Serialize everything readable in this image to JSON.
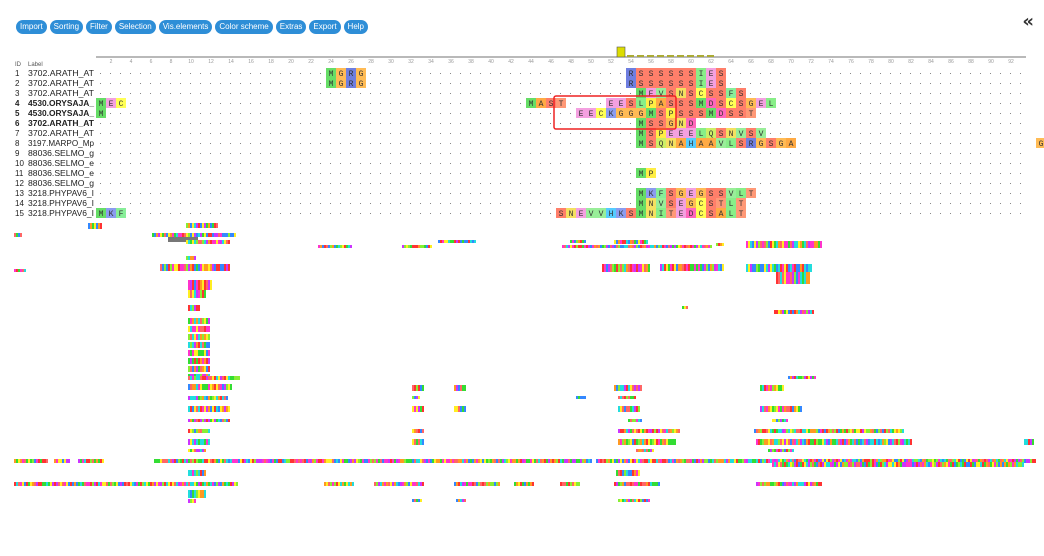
{
  "menu": {
    "items": [
      "Import",
      "Sorting",
      "Filter",
      "Selection",
      "Vis.elements",
      "Color scheme",
      "Extras",
      "Export",
      "Help"
    ]
  },
  "collapse_icon": "double-chevron-left-icon",
  "header": {
    "id_label": "ID",
    "name_label": "Label"
  },
  "ruler": {
    "ticks": [
      2,
      4,
      6,
      8,
      10,
      12,
      14,
      16,
      18,
      20,
      22,
      24,
      26,
      28,
      30,
      32,
      34,
      36,
      38,
      40,
      42,
      44,
      46,
      48,
      50,
      52,
      54,
      56,
      58,
      60,
      62,
      64,
      66,
      68,
      70,
      72,
      74,
      76,
      78,
      80,
      82,
      84,
      86,
      88,
      90,
      92
    ]
  },
  "sequences": [
    {
      "id": "1",
      "label": "3702.ARATH_AT",
      "bold": false,
      "segments": [
        {
          "start": 23,
          "text": "MGRG"
        },
        {
          "start": 53,
          "text": "RSSSSSSIES"
        }
      ]
    },
    {
      "id": "2",
      "label": "3702.ARATH_AT",
      "bold": false,
      "segments": [
        {
          "start": 23,
          "text": "MGRG"
        },
        {
          "start": 53,
          "text": "RSSSSSSIES"
        }
      ]
    },
    {
      "id": "3",
      "label": "3702.ARATH_AT",
      "bold": false,
      "segments": [
        {
          "start": 54,
          "text": "MEVSNSCSSFS"
        }
      ]
    },
    {
      "id": "4",
      "label": "4530.ORYSAJA_",
      "bold": true,
      "segments": [
        {
          "start": 0,
          "text": "MEC"
        },
        {
          "start": 43,
          "text": "MAST"
        },
        {
          "start": 51,
          "text": "EESLPASSSMDSCSGEL"
        }
      ]
    },
    {
      "id": "5",
      "label": "4530.ORYSAJA_",
      "bold": true,
      "segments": [
        {
          "start": 0,
          "text": "M"
        },
        {
          "start": 48,
          "text": "EECKGGGMSPSSSMDSST"
        }
      ]
    },
    {
      "id": "6",
      "label": "3702.ARATH_AT",
      "bold": true,
      "segments": [
        {
          "start": 54,
          "text": "MSSGND"
        }
      ]
    },
    {
      "id": "7",
      "label": "3702.ARATH_AT",
      "bold": false,
      "segments": [
        {
          "start": 54,
          "text": "MSPEEELQSNVSV"
        }
      ]
    },
    {
      "id": "8",
      "label": "3197.MARPO_Mp",
      "bold": false,
      "segments": [
        {
          "start": 54,
          "text": "MSQNAHAAVLSRGSGA"
        },
        {
          "start": 94,
          "text": "GG"
        }
      ]
    },
    {
      "id": "9",
      "label": "88036.SELMO_g",
      "bold": false,
      "segments": []
    },
    {
      "id": "10",
      "label": "88036.SELMO_e",
      "bold": false,
      "segments": []
    },
    {
      "id": "11",
      "label": "88036.SELMO_e",
      "bold": false,
      "segments": [
        {
          "start": 54,
          "text": "MP"
        }
      ]
    },
    {
      "id": "12",
      "label": "88036.SELMO_g",
      "bold": false,
      "segments": []
    },
    {
      "id": "13",
      "label": "3218.PHYPAV6_I",
      "bold": false,
      "segments": [
        {
          "start": 54,
          "text": "MKFSGEGSSVLT"
        }
      ]
    },
    {
      "id": "14",
      "label": "3218.PHYPAV6_I",
      "bold": false,
      "segments": [
        {
          "start": 54,
          "text": "MNVSEGCSTLT"
        }
      ]
    },
    {
      "id": "15",
      "label": "3218.PHYPAV6_I",
      "bold": false,
      "segments": [
        {
          "start": 0,
          "text": "MKF"
        },
        {
          "start": 46,
          "text": "SNEVVHKSMNITEDCSALT"
        }
      ]
    }
  ],
  "colors": {
    "M": "#66dd66",
    "A": "#ffaa44",
    "S": "#ff7f6a",
    "E": "#f4a0e0",
    "C": "#ffff55",
    "G": "#ffbb55",
    "R": "#6e7ee0",
    "K": "#8b9cf0",
    "N": "#f4e060",
    "Q": "#ccee66",
    "D": "#ff66bb",
    "L": "#88ee88",
    "I": "#88ee88",
    "V": "#99ee99",
    "F": "#88ee99",
    "T": "#ff9977",
    "P": "#ffee44",
    "H": "#55ccff",
    "W": "#55cc99",
    "Y": "#55ddbb",
    "selection": "#ee2222",
    "menu": "#2e8ed7"
  }
}
